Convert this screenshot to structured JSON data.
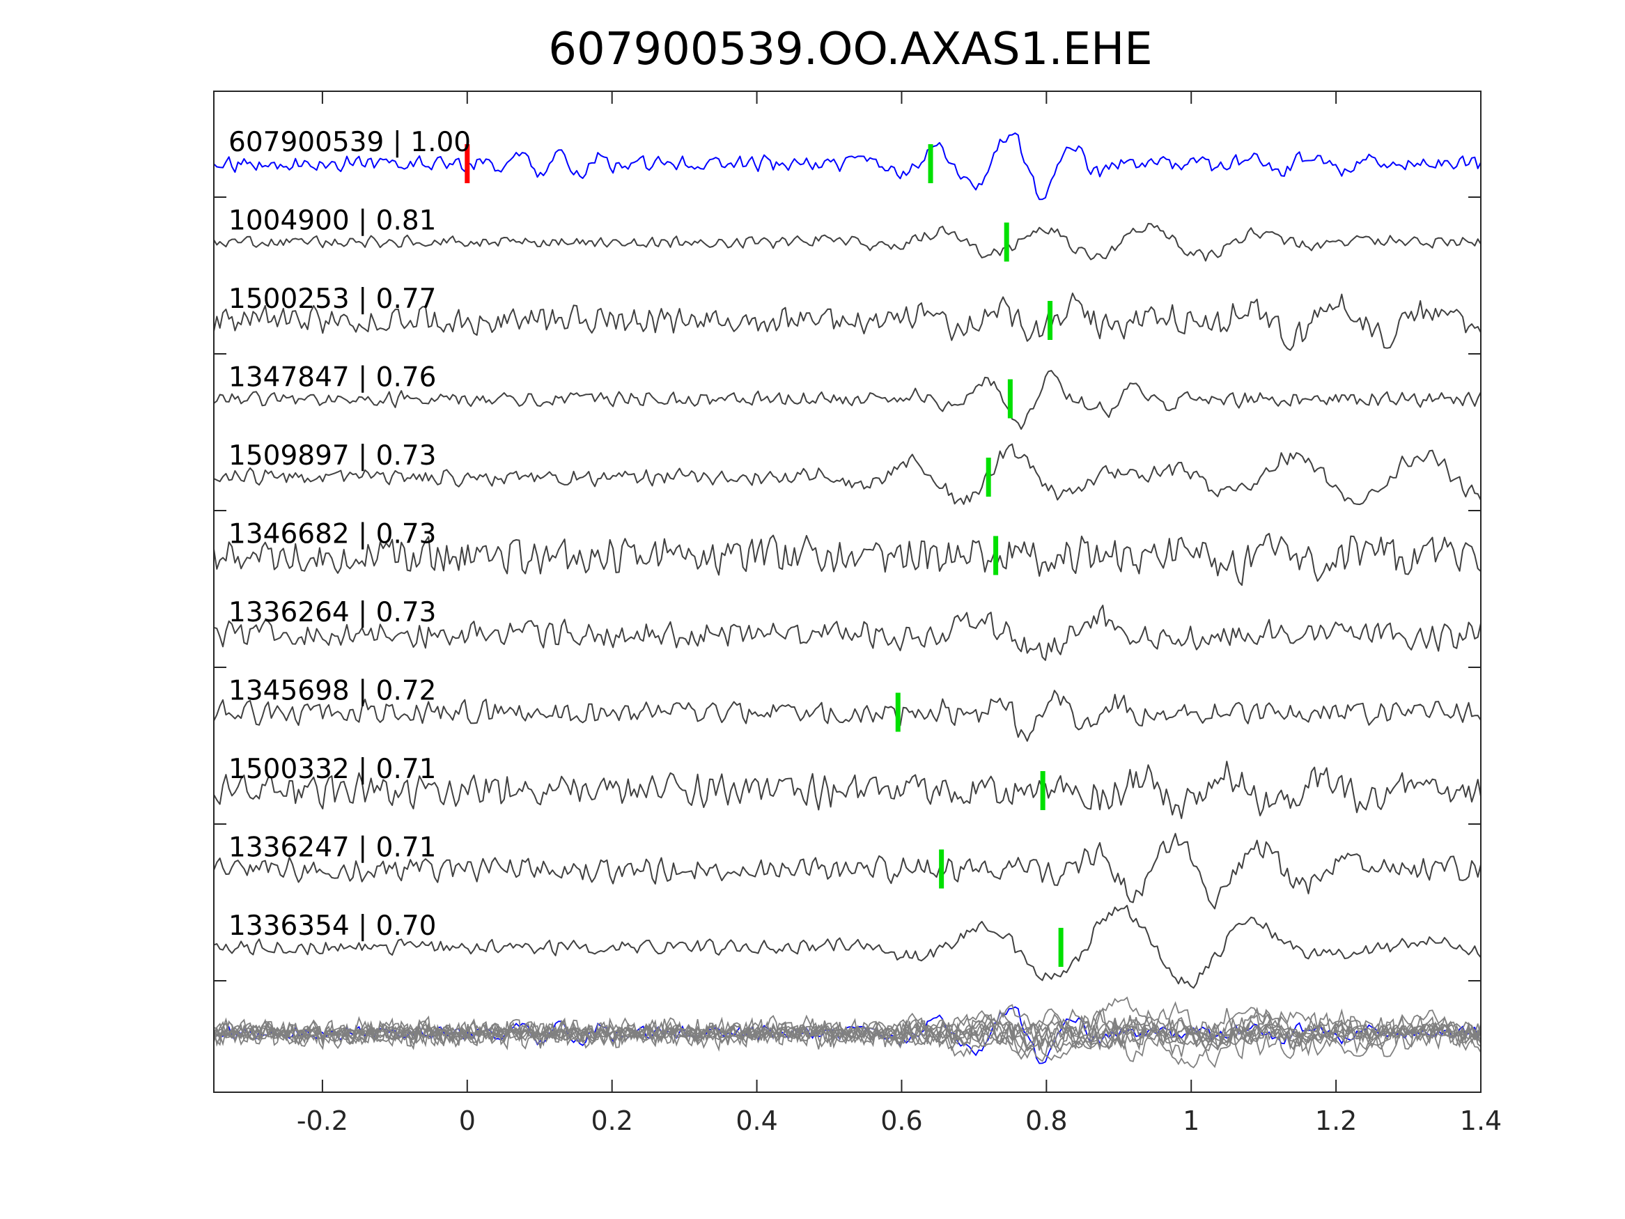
{
  "chart_data": {
    "type": "line",
    "title": "607900539.OO.AXAS1.EHE",
    "xlabel": "",
    "ylabel": "",
    "xlim": [
      -0.35,
      1.4
    ],
    "xticks": [
      -0.2,
      0,
      0.2,
      0.4,
      0.6,
      0.8,
      1,
      1.2,
      1.4
    ],
    "xtick_labels": [
      "-0.2",
      "0",
      "0.2",
      "0.4",
      "0.6",
      "0.8",
      "1",
      "1.2",
      "1.4"
    ],
    "grid": false,
    "legend": "none",
    "colors": {
      "template": "#0000ff",
      "neighbor": "#404040",
      "overlay": "#808080",
      "origin_marker": "#ff0000",
      "pick_marker": "#00e000",
      "axis": "#262626"
    },
    "series": [
      {
        "label": "607900539 | 1.00",
        "template": true,
        "pick": 0.64,
        "seed": 11,
        "noise": 0.35,
        "events": [
          {
            "t": 0.12,
            "a": 0.55,
            "f": 18
          },
          {
            "t": 0.73,
            "a": 1.0,
            "f": 10
          },
          {
            "t": 0.82,
            "a": 0.45,
            "f": 14
          },
          {
            "t": 1.15,
            "a": 0.3,
            "f": 12
          }
        ]
      },
      {
        "label": "1004900 | 0.81",
        "pick": 0.745,
        "seed": 23,
        "noise": 0.28,
        "events": [
          {
            "t": 0.8,
            "a": 0.85,
            "f": 6
          },
          {
            "t": 0.9,
            "a": 1.0,
            "f": 6
          }
        ]
      },
      {
        "label": "1500253 | 0.77",
        "pick": 0.805,
        "seed": 37,
        "noise": 0.7,
        "events": [
          {
            "t": 0.82,
            "a": 0.55,
            "f": 9
          },
          {
            "t": 1.08,
            "a": 0.6,
            "f": 8
          },
          {
            "t": 1.17,
            "a": 0.7,
            "f": 7
          }
        ]
      },
      {
        "label": "1347847 | 0.76",
        "pick": 0.75,
        "seed": 41,
        "noise": 0.35,
        "events": [
          {
            "t": 0.8,
            "a": 0.95,
            "f": 10
          },
          {
            "t": 0.85,
            "a": 0.55,
            "f": 14
          }
        ]
      },
      {
        "label": "1509897 | 0.73",
        "pick": 0.72,
        "seed": 53,
        "noise": 0.4,
        "events": [
          {
            "t": 0.73,
            "a": 0.95,
            "f": 7
          },
          {
            "t": 1.1,
            "a": 0.6,
            "f": 6
          },
          {
            "t": 1.3,
            "a": 0.8,
            "f": 6
          }
        ]
      },
      {
        "label": "1346682 | 0.73",
        "pick": 0.73,
        "seed": 67,
        "noise": 0.95,
        "events": [
          {
            "t": 1.1,
            "a": 0.6,
            "f": 8
          }
        ]
      },
      {
        "label": "1336264 | 0.73",
        "pick": null,
        "seed": 71,
        "noise": 0.65,
        "events": [
          {
            "t": 0.84,
            "a": 0.7,
            "f": 6
          },
          {
            "t": 1.1,
            "a": 0.75,
            "f": 5
          },
          {
            "t": 1.2,
            "a": 0.6,
            "f": 5
          }
        ]
      },
      {
        "label": "1345698 | 0.72",
        "pick": 0.595,
        "seed": 83,
        "noise": 0.55,
        "events": [
          {
            "t": 0.8,
            "a": 0.75,
            "f": 12
          }
        ]
      },
      {
        "label": "1500332 | 0.71",
        "pick": 0.795,
        "seed": 97,
        "noise": 0.8,
        "events": [
          {
            "t": 1.02,
            "a": 0.6,
            "f": 9
          },
          {
            "t": 1.17,
            "a": 0.65,
            "f": 8
          }
        ]
      },
      {
        "label": "1336247 | 0.71",
        "pick": 0.655,
        "seed": 101,
        "noise": 0.6,
        "events": [
          {
            "t": 0.96,
            "a": 0.75,
            "f": 9
          },
          {
            "t": 1.08,
            "a": 0.6,
            "f": 8
          }
        ]
      },
      {
        "label": "1336354 | 0.70",
        "pick": 0.82,
        "seed": 113,
        "noise": 0.35,
        "events": [
          {
            "t": 0.88,
            "a": 0.95,
            "f": 5
          },
          {
            "t": 1.06,
            "a": 0.8,
            "f": 5
          },
          {
            "t": 1.17,
            "a": 0.5,
            "f": 6
          }
        ]
      }
    ],
    "origin_marker_x": 0
  }
}
